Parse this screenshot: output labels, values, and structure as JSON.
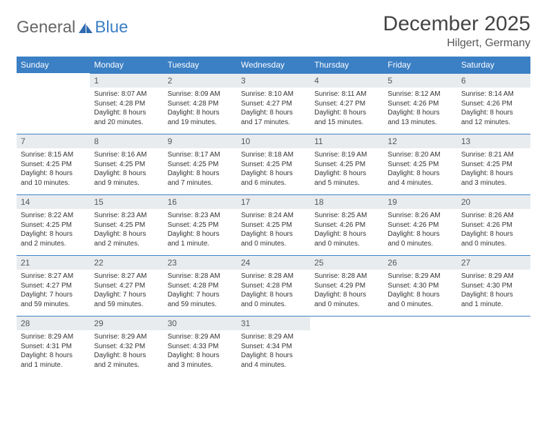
{
  "logo": {
    "text1": "General",
    "text2": "Blue"
  },
  "header": {
    "month": "December 2025",
    "location": "Hilgert, Germany"
  },
  "colors": {
    "accent": "#3b7fc4",
    "daybg": "#e9ecef"
  },
  "weekdays": [
    "Sunday",
    "Monday",
    "Tuesday",
    "Wednesday",
    "Thursday",
    "Friday",
    "Saturday"
  ],
  "startOffset": 1,
  "days": [
    {
      "n": 1,
      "sr": "8:07 AM",
      "ss": "4:28 PM",
      "dl": "8 hours and 20 minutes."
    },
    {
      "n": 2,
      "sr": "8:09 AM",
      "ss": "4:28 PM",
      "dl": "8 hours and 19 minutes."
    },
    {
      "n": 3,
      "sr": "8:10 AM",
      "ss": "4:27 PM",
      "dl": "8 hours and 17 minutes."
    },
    {
      "n": 4,
      "sr": "8:11 AM",
      "ss": "4:27 PM",
      "dl": "8 hours and 15 minutes."
    },
    {
      "n": 5,
      "sr": "8:12 AM",
      "ss": "4:26 PM",
      "dl": "8 hours and 13 minutes."
    },
    {
      "n": 6,
      "sr": "8:14 AM",
      "ss": "4:26 PM",
      "dl": "8 hours and 12 minutes."
    },
    {
      "n": 7,
      "sr": "8:15 AM",
      "ss": "4:25 PM",
      "dl": "8 hours and 10 minutes."
    },
    {
      "n": 8,
      "sr": "8:16 AM",
      "ss": "4:25 PM",
      "dl": "8 hours and 9 minutes."
    },
    {
      "n": 9,
      "sr": "8:17 AM",
      "ss": "4:25 PM",
      "dl": "8 hours and 7 minutes."
    },
    {
      "n": 10,
      "sr": "8:18 AM",
      "ss": "4:25 PM",
      "dl": "8 hours and 6 minutes."
    },
    {
      "n": 11,
      "sr": "8:19 AM",
      "ss": "4:25 PM",
      "dl": "8 hours and 5 minutes."
    },
    {
      "n": 12,
      "sr": "8:20 AM",
      "ss": "4:25 PM",
      "dl": "8 hours and 4 minutes."
    },
    {
      "n": 13,
      "sr": "8:21 AM",
      "ss": "4:25 PM",
      "dl": "8 hours and 3 minutes."
    },
    {
      "n": 14,
      "sr": "8:22 AM",
      "ss": "4:25 PM",
      "dl": "8 hours and 2 minutes."
    },
    {
      "n": 15,
      "sr": "8:23 AM",
      "ss": "4:25 PM",
      "dl": "8 hours and 2 minutes."
    },
    {
      "n": 16,
      "sr": "8:23 AM",
      "ss": "4:25 PM",
      "dl": "8 hours and 1 minute."
    },
    {
      "n": 17,
      "sr": "8:24 AM",
      "ss": "4:25 PM",
      "dl": "8 hours and 0 minutes."
    },
    {
      "n": 18,
      "sr": "8:25 AM",
      "ss": "4:26 PM",
      "dl": "8 hours and 0 minutes."
    },
    {
      "n": 19,
      "sr": "8:26 AM",
      "ss": "4:26 PM",
      "dl": "8 hours and 0 minutes."
    },
    {
      "n": 20,
      "sr": "8:26 AM",
      "ss": "4:26 PM",
      "dl": "8 hours and 0 minutes."
    },
    {
      "n": 21,
      "sr": "8:27 AM",
      "ss": "4:27 PM",
      "dl": "7 hours and 59 minutes."
    },
    {
      "n": 22,
      "sr": "8:27 AM",
      "ss": "4:27 PM",
      "dl": "7 hours and 59 minutes."
    },
    {
      "n": 23,
      "sr": "8:28 AM",
      "ss": "4:28 PM",
      "dl": "7 hours and 59 minutes."
    },
    {
      "n": 24,
      "sr": "8:28 AM",
      "ss": "4:28 PM",
      "dl": "8 hours and 0 minutes."
    },
    {
      "n": 25,
      "sr": "8:28 AM",
      "ss": "4:29 PM",
      "dl": "8 hours and 0 minutes."
    },
    {
      "n": 26,
      "sr": "8:29 AM",
      "ss": "4:30 PM",
      "dl": "8 hours and 0 minutes."
    },
    {
      "n": 27,
      "sr": "8:29 AM",
      "ss": "4:30 PM",
      "dl": "8 hours and 1 minute."
    },
    {
      "n": 28,
      "sr": "8:29 AM",
      "ss": "4:31 PM",
      "dl": "8 hours and 1 minute."
    },
    {
      "n": 29,
      "sr": "8:29 AM",
      "ss": "4:32 PM",
      "dl": "8 hours and 2 minutes."
    },
    {
      "n": 30,
      "sr": "8:29 AM",
      "ss": "4:33 PM",
      "dl": "8 hours and 3 minutes."
    },
    {
      "n": 31,
      "sr": "8:29 AM",
      "ss": "4:34 PM",
      "dl": "8 hours and 4 minutes."
    }
  ],
  "labels": {
    "sunrise": "Sunrise:",
    "sunset": "Sunset:",
    "daylight": "Daylight:"
  }
}
